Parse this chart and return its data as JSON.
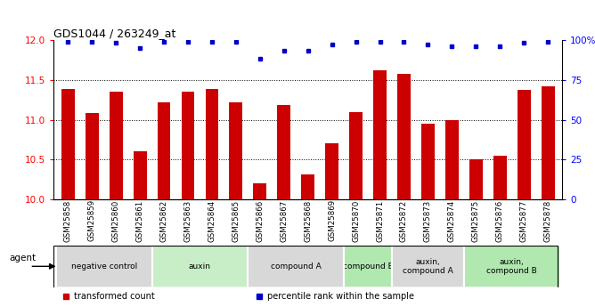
{
  "title": "GDS1044 / 263249_at",
  "samples": [
    "GSM25858",
    "GSM25859",
    "GSM25860",
    "GSM25861",
    "GSM25862",
    "GSM25863",
    "GSM25864",
    "GSM25865",
    "GSM25866",
    "GSM25867",
    "GSM25868",
    "GSM25869",
    "GSM25870",
    "GSM25871",
    "GSM25872",
    "GSM25873",
    "GSM25874",
    "GSM25875",
    "GSM25876",
    "GSM25877",
    "GSM25878"
  ],
  "bar_values": [
    11.38,
    11.08,
    11.35,
    10.6,
    11.22,
    11.35,
    11.38,
    11.22,
    10.2,
    11.18,
    10.32,
    10.7,
    11.1,
    11.62,
    11.58,
    10.95,
    11.0,
    10.5,
    10.55,
    11.37,
    11.42
  ],
  "dot_values": [
    99,
    99,
    98,
    95,
    99,
    99,
    99,
    99,
    88,
    93,
    93,
    97,
    99,
    99,
    99,
    97,
    96,
    96,
    96,
    98,
    99
  ],
  "ylim_left": [
    10,
    12
  ],
  "ylim_right": [
    0,
    100
  ],
  "yticks_left": [
    10,
    10.5,
    11,
    11.5,
    12
  ],
  "yticks_right": [
    0,
    25,
    50,
    75,
    100
  ],
  "bar_color": "#cc0000",
  "dot_color": "#0000cc",
  "groups": [
    {
      "label": "negative control",
      "start": 0,
      "end": 3,
      "color": "#d8d8d8"
    },
    {
      "label": "auxin",
      "start": 4,
      "end": 7,
      "color": "#c8eec8"
    },
    {
      "label": "compound A",
      "start": 8,
      "end": 11,
      "color": "#d8d8d8"
    },
    {
      "label": "compound B",
      "start": 12,
      "end": 13,
      "color": "#b0e8b0"
    },
    {
      "label": "auxin,\ncompound A",
      "start": 14,
      "end": 16,
      "color": "#d8d8d8"
    },
    {
      "label": "auxin,\ncompound B",
      "start": 17,
      "end": 20,
      "color": "#b0e8b0"
    }
  ],
  "background_color": "#ffffff"
}
